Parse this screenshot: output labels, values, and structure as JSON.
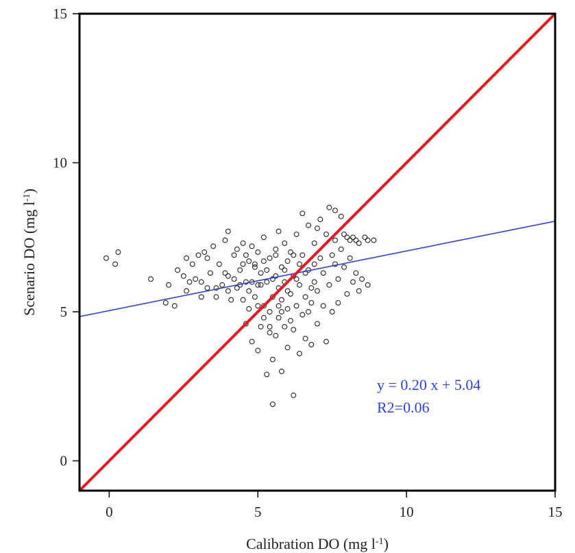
{
  "chart_data": {
    "type": "scatter",
    "title": "",
    "xlabel": {
      "base": "Calibration DO (mg l",
      "sup": "-1",
      "close": ")"
    },
    "ylabel": {
      "base": "Scenario DO (mg l",
      "sup": "-1",
      "close": ")"
    },
    "xlim": [
      -1,
      15
    ],
    "ylim": [
      -1,
      15
    ],
    "xticks": [
      0,
      5,
      10,
      15
    ],
    "yticks": [
      0,
      5,
      10,
      15
    ],
    "xtick_labels": [
      "0",
      "5",
      "10",
      "15"
    ],
    "ytick_labels": [
      "0",
      "5",
      "10",
      "15"
    ],
    "grid": false,
    "legend": "none",
    "colors": {
      "points": "#222222",
      "one_to_one": "#e8191d",
      "fit": "#2f3fe0",
      "annotation": "#2f3fe0",
      "frame": "#000000"
    },
    "reference_line": {
      "name": "1:1",
      "x": [
        -1,
        15
      ],
      "y": [
        -1,
        15
      ]
    },
    "fit_line": {
      "slope": 0.2,
      "intercept": 5.04
    },
    "annotation": {
      "equation": "y = 0.20 x + 5.04",
      "r2": "R2=0.06"
    },
    "points": [
      [
        -0.1,
        6.8
      ],
      [
        0.2,
        6.6
      ],
      [
        0.3,
        7.0
      ],
      [
        1.4,
        6.1
      ],
      [
        1.9,
        5.3
      ],
      [
        2.2,
        5.2
      ],
      [
        2.3,
        6.4
      ],
      [
        2.5,
        6.2
      ],
      [
        2.6,
        5.7
      ],
      [
        2.7,
        6.0
      ],
      [
        2.8,
        6.6
      ],
      [
        2.9,
        6.1
      ],
      [
        3.0,
        6.9
      ],
      [
        3.1,
        6.0
      ],
      [
        3.2,
        7.0
      ],
      [
        3.3,
        5.8
      ],
      [
        3.4,
        6.3
      ],
      [
        3.5,
        7.2
      ],
      [
        3.6,
        5.5
      ],
      [
        3.7,
        6.6
      ],
      [
        3.8,
        5.9
      ],
      [
        3.9,
        7.4
      ],
      [
        4.0,
        7.7
      ],
      [
        4.0,
        6.2
      ],
      [
        4.1,
        5.4
      ],
      [
        4.2,
        6.9
      ],
      [
        4.3,
        7.1
      ],
      [
        4.3,
        5.8
      ],
      [
        4.4,
        6.4
      ],
      [
        4.5,
        7.3
      ],
      [
        4.5,
        5.4
      ],
      [
        4.6,
        6.0
      ],
      [
        4.6,
        4.6
      ],
      [
        4.7,
        5.1
      ],
      [
        4.7,
        6.7
      ],
      [
        4.8,
        4.0
      ],
      [
        4.8,
        7.2
      ],
      [
        4.9,
        5.5
      ],
      [
        4.9,
        6.5
      ],
      [
        5.0,
        3.7
      ],
      [
        5.0,
        5.9
      ],
      [
        5.0,
        7.0
      ],
      [
        5.1,
        4.5
      ],
      [
        5.1,
        6.3
      ],
      [
        5.2,
        5.2
      ],
      [
        5.2,
        7.5
      ],
      [
        5.3,
        2.9
      ],
      [
        5.3,
        6.0
      ],
      [
        5.4,
        4.3
      ],
      [
        5.4,
        5.0
      ],
      [
        5.4,
        6.8
      ],
      [
        5.5,
        1.9
      ],
      [
        5.5,
        3.4
      ],
      [
        5.5,
        5.5
      ],
      [
        5.6,
        4.2
      ],
      [
        5.6,
        6.2
      ],
      [
        5.6,
        7.1
      ],
      [
        5.7,
        4.8
      ],
      [
        5.7,
        5.8
      ],
      [
        5.7,
        7.7
      ],
      [
        5.8,
        3.0
      ],
      [
        5.8,
        5.4
      ],
      [
        5.8,
        6.5
      ],
      [
        5.9,
        4.5
      ],
      [
        5.9,
        6.0
      ],
      [
        5.9,
        7.3
      ],
      [
        6.0,
        5.1
      ],
      [
        6.0,
        6.7
      ],
      [
        6.0,
        3.8
      ],
      [
        6.1,
        5.6
      ],
      [
        6.1,
        7.0
      ],
      [
        6.2,
        2.2
      ],
      [
        6.2,
        4.4
      ],
      [
        6.2,
        6.2
      ],
      [
        6.3,
        5.2
      ],
      [
        6.3,
        7.6
      ],
      [
        6.4,
        3.6
      ],
      [
        6.4,
        5.9
      ],
      [
        6.5,
        4.9
      ],
      [
        6.5,
        6.9
      ],
      [
        6.5,
        8.3
      ],
      [
        6.6,
        4.1
      ],
      [
        6.6,
        5.5
      ],
      [
        6.7,
        6.4
      ],
      [
        6.7,
        7.9
      ],
      [
        6.8,
        3.9
      ],
      [
        6.8,
        5.3
      ],
      [
        6.9,
        6.0
      ],
      [
        6.9,
        7.3
      ],
      [
        7.0,
        4.6
      ],
      [
        7.0,
        5.7
      ],
      [
        7.1,
        6.8
      ],
      [
        7.1,
        8.1
      ],
      [
        7.2,
        5.2
      ],
      [
        7.2,
        6.3
      ],
      [
        7.3,
        4.0
      ],
      [
        7.3,
        7.6
      ],
      [
        7.4,
        8.5
      ],
      [
        7.4,
        5.9
      ],
      [
        7.5,
        5.0
      ],
      [
        7.5,
        6.9
      ],
      [
        7.6,
        8.4
      ],
      [
        7.6,
        7.4
      ],
      [
        7.7,
        5.3
      ],
      [
        7.7,
        6.1
      ],
      [
        7.8,
        7.1
      ],
      [
        7.8,
        8.2
      ],
      [
        7.9,
        6.5
      ],
      [
        7.9,
        7.6
      ],
      [
        8.0,
        5.6
      ],
      [
        8.0,
        7.5
      ],
      [
        8.1,
        6.8
      ],
      [
        8.1,
        7.4
      ],
      [
        8.2,
        6.0
      ],
      [
        8.2,
        7.5
      ],
      [
        8.3,
        6.3
      ],
      [
        8.3,
        7.4
      ],
      [
        8.4,
        5.7
      ],
      [
        8.4,
        7.3
      ],
      [
        8.5,
        6.1
      ],
      [
        8.6,
        7.5
      ],
      [
        8.7,
        5.9
      ],
      [
        8.7,
        7.4
      ],
      [
        8.9,
        7.4
      ],
      [
        5.4,
        4.5
      ],
      [
        4.9,
        6.6
      ],
      [
        6.3,
        6.1
      ],
      [
        5.1,
        5.9
      ],
      [
        5.6,
        6.9
      ],
      [
        6.0,
        5.7
      ],
      [
        4.4,
        5.9
      ],
      [
        5.3,
        6.4
      ],
      [
        6.6,
        6.3
      ],
      [
        5.8,
        5.0
      ],
      [
        3.9,
        6.3
      ],
      [
        4.7,
        5.7
      ],
      [
        6.8,
        5.8
      ],
      [
        5.2,
        6.7
      ],
      [
        4.2,
        6.1
      ],
      [
        5.9,
        6.4
      ],
      [
        6.1,
        4.7
      ],
      [
        4.6,
        6.9
      ],
      [
        3.6,
        5.8
      ],
      [
        4.8,
        6.0
      ],
      [
        5.5,
        6.1
      ],
      [
        6.4,
        6.6
      ],
      [
        6.9,
        6.6
      ],
      [
        5.0,
        5.2
      ],
      [
        3.3,
        6.8
      ],
      [
        4.0,
        5.7
      ],
      [
        2.0,
        5.9
      ],
      [
        2.6,
        6.8
      ],
      [
        5.7,
        5.2
      ],
      [
        6.7,
        5.0
      ],
      [
        7.0,
        7.8
      ],
      [
        4.5,
        6.6
      ],
      [
        5.2,
        4.8
      ],
      [
        6.2,
        6.9
      ],
      [
        7.6,
        6.6
      ],
      [
        3.1,
        5.5
      ]
    ]
  }
}
